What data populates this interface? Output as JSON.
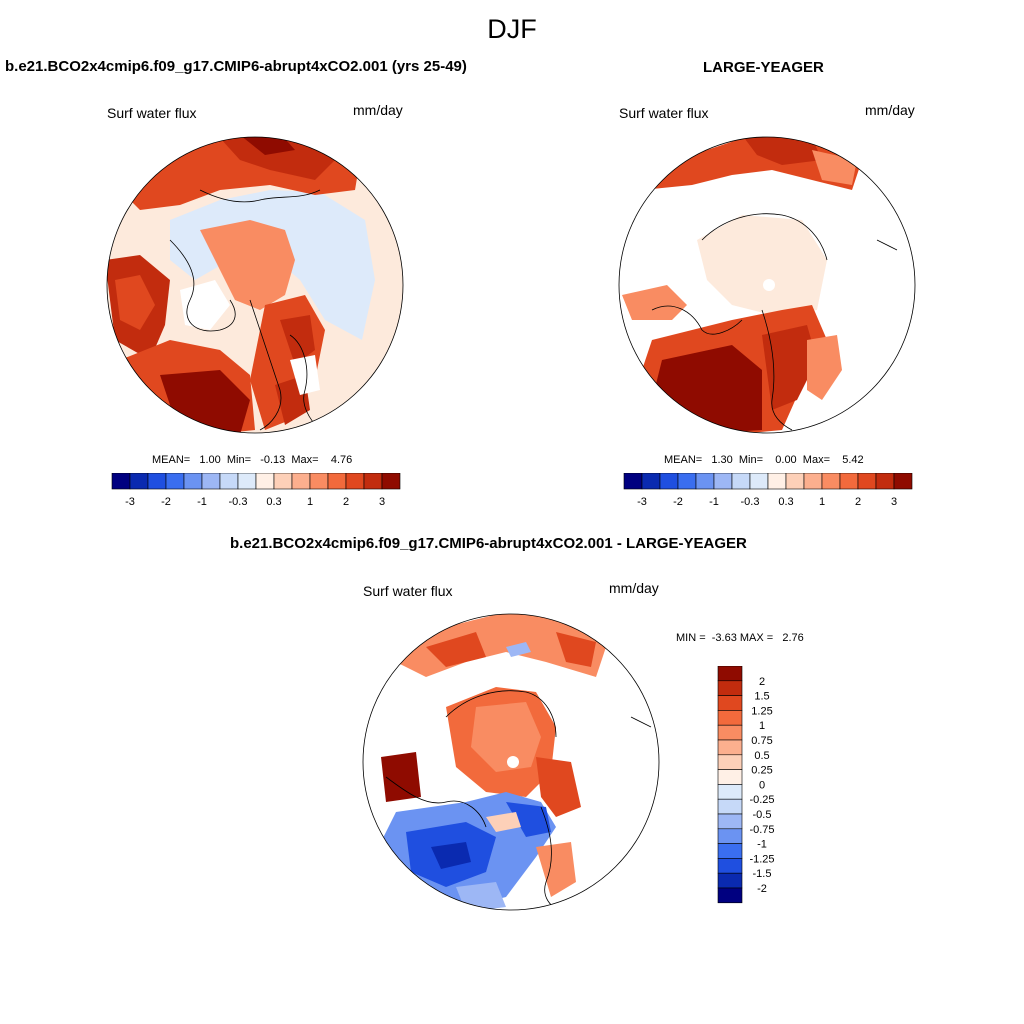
{
  "suptitle": "DJF",
  "colors": {
    "pos_ramp": [
      "#fff0e6",
      "#fdd0b8",
      "#fcaf8e",
      "#f98c62",
      "#f26a3c",
      "#e0481f",
      "#c22c0e",
      "#8f0b00"
    ],
    "neg_ramp": [
      "#000080",
      "#0a2ab0",
      "#1f4fe0",
      "#3a6ef0",
      "#6b93f2",
      "#9db7f5",
      "#c6d9f8",
      "#ddeafa"
    ],
    "land_white": "#ffffff",
    "coast": "#000000"
  },
  "panels": [
    {
      "title": "b.e21.BCO2x4cmip6.f09_g17.CMIP6-abrupt4xCO2.001 (yrs 25-49)",
      "variable": "Surf water flux",
      "units": "mm/day",
      "stats": "MEAN=   1.00  Min=   -0.13  Max=    4.76",
      "colorbar_ticks": [
        "-3",
        "-2",
        "-1",
        "-0.3",
        "0.3",
        "1",
        "2",
        "3"
      ]
    },
    {
      "title": "LARGE-YEAGER",
      "variable": "Surf water flux",
      "units": "mm/day",
      "stats": "MEAN=   1.30  Min=    0.00  Max=    5.42",
      "colorbar_ticks": [
        "-3",
        "-2",
        "-1",
        "-0.3",
        "0.3",
        "1",
        "2",
        "3"
      ]
    },
    {
      "title": "b.e21.BCO2x4cmip6.f09_g17.CMIP6-abrupt4xCO2.001 - LARGE-YEAGER",
      "variable": "Surf water flux",
      "units": "mm/day",
      "stats": "MIN =  -3.63 MAX =   2.76",
      "colorbar_ticks": [
        "2",
        "1.5",
        "1.25",
        "1",
        "0.75",
        "0.5",
        "0.25",
        "0",
        "-0.25",
        "-0.5",
        "-0.75",
        "-1",
        "-1.25",
        "-1.5",
        "-2"
      ]
    }
  ]
}
